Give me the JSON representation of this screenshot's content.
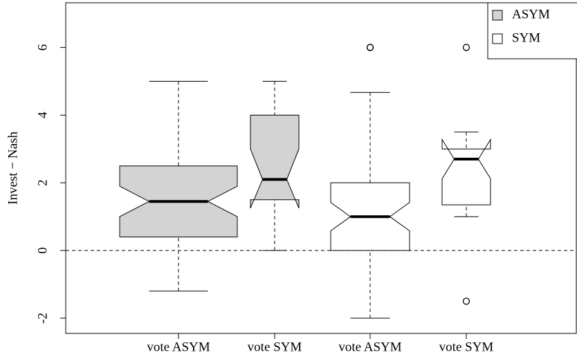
{
  "chart_data": {
    "type": "box",
    "y_label": "Invest − Nash",
    "categories": [
      "vote ASYM",
      "vote SYM",
      "vote ASYM",
      "vote SYM"
    ],
    "boxes": [
      {
        "whisker_low": -1.2,
        "q1": 0.4,
        "median": 1.45,
        "q3": 2.5,
        "whisker_high": 5,
        "notch_low": 1.0,
        "notch_high": 1.9,
        "outliers": [],
        "color": "#d3d3d3"
      },
      {
        "whisker_low": 0,
        "q1": 1.5,
        "median": 2.1,
        "q3": 4.0,
        "whisker_high": 5,
        "notch_low": 1.25,
        "notch_high": 3.0,
        "outliers": [],
        "color": "#d3d3d3"
      },
      {
        "whisker_low": -2,
        "q1": 0,
        "median": 1.0,
        "q3": 2.0,
        "whisker_high": 4.67,
        "notch_low": 0.58,
        "notch_high": 1.42,
        "outliers": [
          6,
          6
        ],
        "color": "#ffffff"
      },
      {
        "whisker_low": 1.0,
        "q1": 1.35,
        "median": 2.7,
        "q3": 3.0,
        "whisker_high": 3.5,
        "notch_low": 2.12,
        "notch_high": 3.28,
        "outliers": [
          6,
          -1.5
        ],
        "color": "#ffffff"
      }
    ],
    "reference_line": 0,
    "ylim": [
      -2.45,
      7.32
    ],
    "yticks": [
      -2,
      0,
      2,
      4,
      6
    ],
    "legend": [
      {
        "name": "ASYM",
        "color": "#d3d3d3"
      },
      {
        "name": "SYM",
        "color": "#ffffff"
      }
    ],
    "legend_position": "top-right"
  }
}
